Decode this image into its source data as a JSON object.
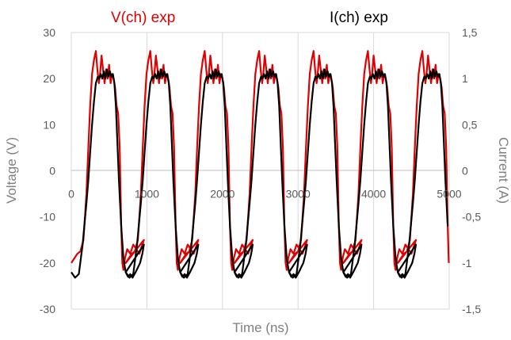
{
  "chart_data": {
    "type": "line",
    "title": "",
    "xlabel": "Time (ns)",
    "ylabel": "Voltage (V)",
    "y2label": "Current (A)",
    "xlim": [
      0,
      5000
    ],
    "ylim": [
      -30,
      30
    ],
    "y2lim": [
      -1.5,
      1.5
    ],
    "x_ticks": [
      "0",
      "1000",
      "2000",
      "3000",
      "4000",
      "5000"
    ],
    "y_ticks": [
      "-30",
      "-20",
      "-10",
      "0",
      "10",
      "20",
      "30"
    ],
    "y2_ticks": [
      "-1,5",
      "-1",
      "-0,5",
      "0",
      "0,5",
      "1",
      "1,5"
    ],
    "grid": "vertical",
    "legend": "top",
    "series": [
      {
        "name": "V(ch) exp",
        "axis": "left",
        "color": "#e00000",
        "x": [
          0,
          40,
          80,
          120,
          160,
          200,
          225,
          250,
          275,
          300,
          325,
          345,
          365,
          380,
          400,
          420,
          440,
          460,
          480,
          500,
          520,
          540,
          560,
          580,
          600,
          620,
          640,
          660,
          675,
          690,
          710,
          740,
          780,
          820,
          860,
          900,
          940,
          960
        ],
        "y": [
          -20,
          -19,
          -18,
          -17.5,
          -15,
          -5,
          5,
          14,
          21,
          24,
          26,
          22,
          19,
          21,
          25,
          22,
          19,
          22,
          20,
          23,
          19,
          21,
          20,
          18,
          14,
          12.5,
          5,
          -12,
          -20,
          -21.5,
          -19,
          -17,
          -18,
          -16,
          -17,
          -18,
          -16,
          -15
        ]
      },
      {
        "name": "I(ch) exp",
        "axis": "right",
        "color": "#000000",
        "x": [
          0,
          50,
          100,
          150,
          200,
          225,
          250,
          275,
          300,
          325,
          350,
          370,
          390,
          410,
          430,
          450,
          470,
          490,
          510,
          530,
          550,
          570,
          590,
          610,
          630,
          660,
          690,
          720,
          750,
          780,
          810,
          850,
          880,
          910,
          940,
          960
        ],
        "y": [
          -1.1,
          -1.16,
          -1.12,
          -0.8,
          -0.35,
          -0.1,
          0.2,
          0.5,
          0.75,
          0.95,
          1.02,
          1.0,
          1.05,
          1.0,
          1.08,
          1.0,
          1.1,
          1.02,
          1.08,
          1.02,
          1.05,
          0.95,
          0.7,
          0.3,
          -0.1,
          -0.6,
          -0.95,
          -1.1,
          -1.15,
          -1.12,
          -1.16,
          -1.1,
          -1.05,
          -1.0,
          -0.9,
          -0.8
        ]
      }
    ],
    "period_ns": 720,
    "first_cycle_offset_ns": 0
  }
}
